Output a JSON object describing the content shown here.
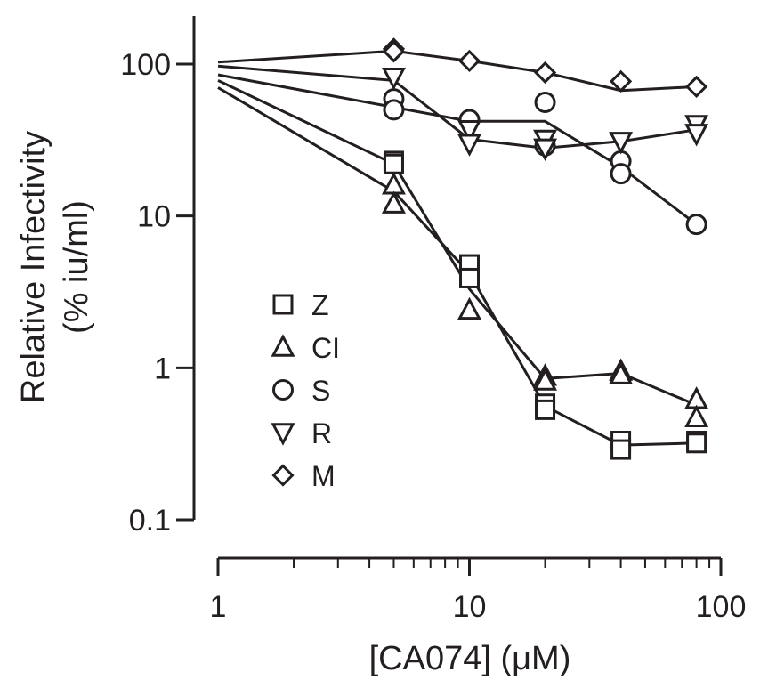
{
  "chart_data": {
    "type": "scatter",
    "xlabel": "[CA074] (μM)",
    "ylabel_line1": "Relative Infectivity",
    "ylabel_line2": "(% iu/ml)",
    "x_scale": "log",
    "y_scale": "log",
    "xlim": [
      1,
      100
    ],
    "ylim": [
      0.1,
      100
    ],
    "x_ticks": [
      {
        "value": 1,
        "label": "1"
      },
      {
        "value": 10,
        "label": "10"
      },
      {
        "value": 100,
        "label": "100"
      }
    ],
    "y_ticks": [
      {
        "value": 0.1,
        "label": "0.1"
      },
      {
        "value": 1,
        "label": "1"
      },
      {
        "value": 10,
        "label": "10"
      },
      {
        "value": 100,
        "label": "100"
      }
    ],
    "legend_placement": "center-left",
    "series": [
      {
        "name": "Z",
        "marker": "square",
        "points": [
          [
            5,
            23
          ],
          [
            5,
            22
          ],
          [
            10,
            4.8
          ],
          [
            10,
            3.9
          ],
          [
            20,
            0.58
          ],
          [
            20,
            0.53
          ],
          [
            40,
            0.33
          ],
          [
            40,
            0.29
          ],
          [
            80,
            0.33
          ],
          [
            80,
            0.32
          ]
        ],
        "fit": [
          [
            1,
            70
          ],
          [
            5,
            14.5
          ],
          [
            10,
            4.2
          ],
          [
            20,
            0.56
          ],
          [
            40,
            0.31
          ],
          [
            80,
            0.32
          ]
        ]
      },
      {
        "name": "CI",
        "marker": "triangle-up",
        "points": [
          [
            5,
            16
          ],
          [
            5,
            12
          ],
          [
            10,
            2.4
          ],
          [
            20,
            0.88
          ],
          [
            20,
            0.82
          ],
          [
            40,
            0.95
          ],
          [
            40,
            0.9
          ],
          [
            80,
            0.62
          ],
          [
            80,
            0.47
          ]
        ],
        "fit": [
          [
            1,
            78
          ],
          [
            5,
            22
          ],
          [
            10,
            3.3
          ],
          [
            20,
            0.85
          ],
          [
            40,
            0.92
          ],
          [
            80,
            0.57
          ]
        ]
      },
      {
        "name": "S",
        "marker": "circle",
        "points": [
          [
            5,
            59
          ],
          [
            5,
            50
          ],
          [
            10,
            43
          ],
          [
            20,
            56
          ],
          [
            20,
            29
          ],
          [
            40,
            23
          ],
          [
            40,
            19
          ],
          [
            80,
            8.8
          ]
        ],
        "fit": [
          [
            1,
            85
          ],
          [
            5,
            52
          ],
          [
            10,
            42
          ],
          [
            20,
            42
          ],
          [
            40,
            21
          ],
          [
            80,
            8.8
          ]
        ]
      },
      {
        "name": "R",
        "marker": "triangle-down",
        "points": [
          [
            5,
            82
          ],
          [
            10,
            37
          ],
          [
            10,
            30
          ],
          [
            20,
            32
          ],
          [
            20,
            28
          ],
          [
            40,
            31
          ],
          [
            80,
            40
          ],
          [
            80,
            35
          ]
        ],
        "fit": [
          [
            1,
            97
          ],
          [
            5,
            78
          ],
          [
            10,
            32
          ],
          [
            20,
            28
          ],
          [
            40,
            31
          ],
          [
            80,
            37
          ]
        ]
      },
      {
        "name": "M",
        "marker": "diamond",
        "points": [
          [
            5,
            126
          ],
          [
            5,
            121
          ],
          [
            10,
            105
          ],
          [
            20,
            88
          ],
          [
            40,
            77
          ],
          [
            80,
            71
          ]
        ],
        "fit": [
          [
            1,
            103
          ],
          [
            5,
            122
          ],
          [
            10,
            105
          ],
          [
            20,
            88
          ],
          [
            40,
            67
          ],
          [
            80,
            71
          ]
        ]
      }
    ]
  }
}
